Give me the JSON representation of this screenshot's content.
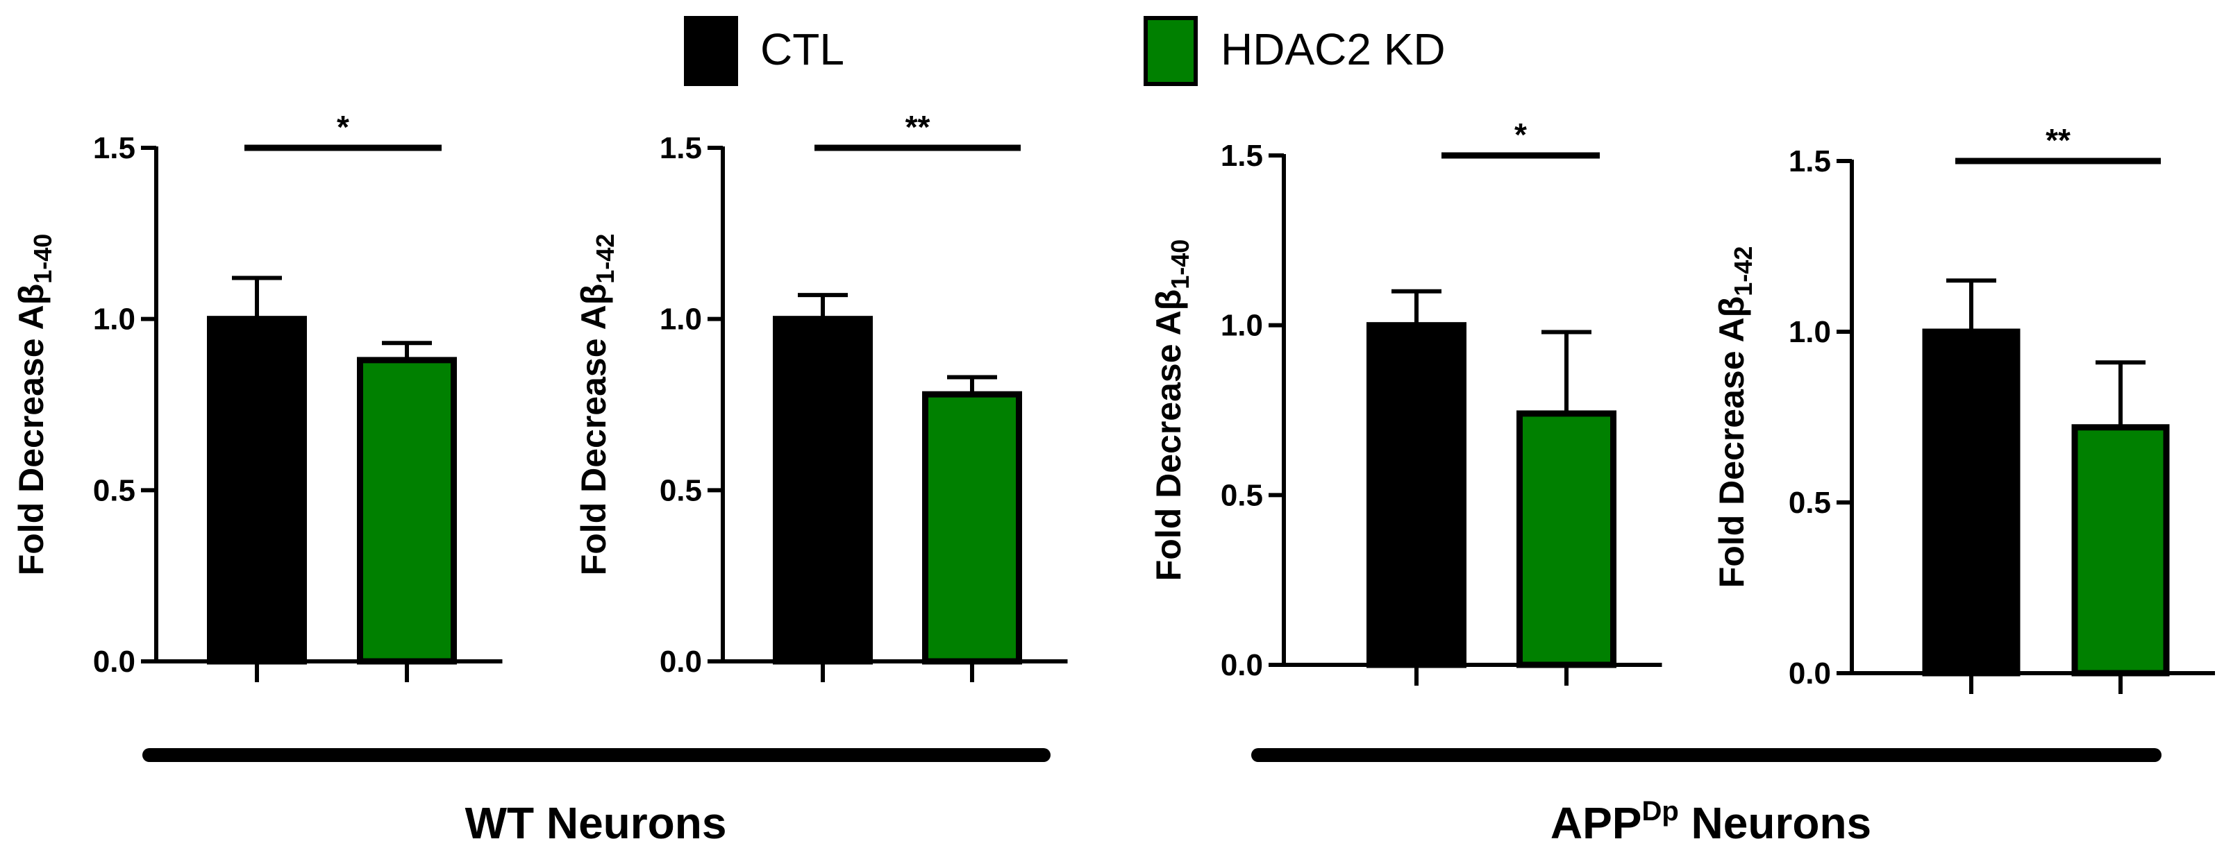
{
  "legend": {
    "items": [
      {
        "label": "CTL",
        "color": "#000000"
      },
      {
        "label": "HDAC2 KD",
        "color": "#008000"
      }
    ]
  },
  "groups": [
    {
      "label": "WT Neurons",
      "label_main": "WT",
      "label_sup": "",
      "label_rest": " Neurons"
    },
    {
      "label": "APPDp Neurons",
      "label_main": "APP",
      "label_sup": "Dp",
      "label_rest": " Neurons"
    }
  ],
  "chart_data": [
    {
      "type": "bar",
      "group": "WT Neurons",
      "ylabel_main": "Fold Decrease A",
      "ylabel_greek": "β",
      "ylabel_sub": "1-40",
      "categories": [
        "CTL",
        "HDAC2 KD"
      ],
      "values": [
        1.0,
        0.88
      ],
      "errors": [
        0.12,
        0.05
      ],
      "colors": [
        "#000000",
        "#008000"
      ],
      "ylim": [
        0,
        1.5
      ],
      "yticks": [
        "0.0",
        "0.5",
        "1.0",
        "1.5"
      ],
      "significance": "*"
    },
    {
      "type": "bar",
      "group": "WT Neurons",
      "ylabel_main": "Fold Decrease A",
      "ylabel_greek": "β",
      "ylabel_sub": "1-42",
      "categories": [
        "CTL",
        "HDAC2 KD"
      ],
      "values": [
        1.0,
        0.78
      ],
      "errors": [
        0.07,
        0.05
      ],
      "colors": [
        "#000000",
        "#008000"
      ],
      "ylim": [
        0,
        1.5
      ],
      "yticks": [
        "0.0",
        "0.5",
        "1.0",
        "1.5"
      ],
      "significance": "**"
    },
    {
      "type": "bar",
      "group": "APPDp Neurons",
      "ylabel_main": "Fold Decrease A",
      "ylabel_greek": "β",
      "ylabel_sub": "1-40",
      "categories": [
        "CTL",
        "HDAC2 KD"
      ],
      "values": [
        1.0,
        0.74
      ],
      "errors": [
        0.1,
        0.24
      ],
      "colors": [
        "#000000",
        "#008000"
      ],
      "ylim": [
        0,
        1.5
      ],
      "yticks": [
        "0.0",
        "0.5",
        "1.0",
        "1.5"
      ],
      "significance": "*"
    },
    {
      "type": "bar",
      "group": "APPDp Neurons",
      "ylabel_main": "Fold Decrease A",
      "ylabel_greek": "β",
      "ylabel_sub": "1-42",
      "categories": [
        "CTL",
        "HDAC2 KD"
      ],
      "values": [
        1.0,
        0.72
      ],
      "errors": [
        0.15,
        0.19
      ],
      "colors": [
        "#000000",
        "#008000"
      ],
      "ylim": [
        0,
        1.5
      ],
      "yticks": [
        "0.0",
        "0.5",
        "1.0",
        "1.5"
      ],
      "significance": "**"
    }
  ]
}
